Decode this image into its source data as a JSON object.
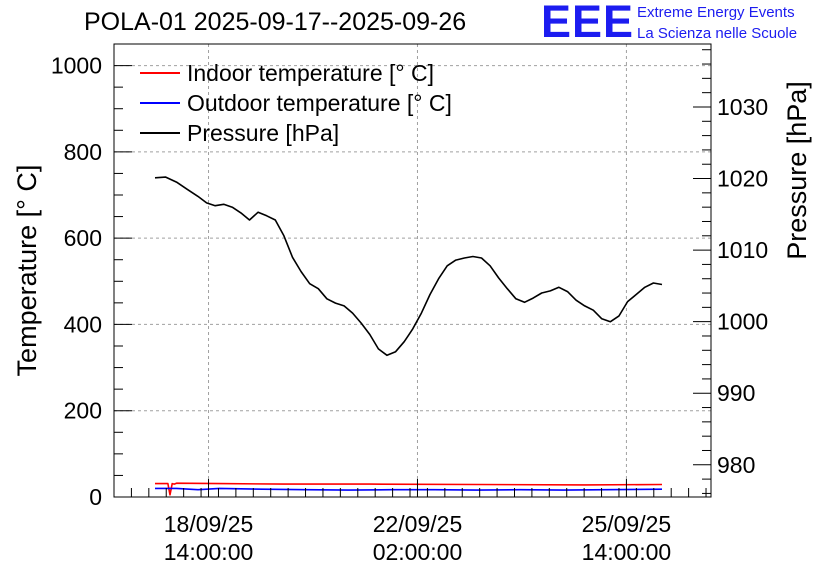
{
  "header": {
    "title": "POLA-01 2025-09-17--2025-09-26",
    "logo_text": "EEE",
    "org_line1": "Extreme Energy Events",
    "org_line2": "La Scienza nelle Scuole"
  },
  "colors": {
    "indoor": "#ff0000",
    "outdoor": "#0000ff",
    "pressure": "#000000",
    "grid": "#a0a0a0",
    "brand": "#1c1cf0"
  },
  "chart_data": {
    "type": "line",
    "title": "POLA-01 2025-09-17--2025-09-26",
    "ylabel": "Temperature [° C]",
    "y2label": "Pressure [hPa]",
    "ylim": [
      0,
      1050
    ],
    "y2lim": [
      975.5,
      1038.8
    ],
    "xlim": [
      0,
      240
    ],
    "yticks": [
      0,
      200,
      400,
      600,
      800,
      1000
    ],
    "y2ticks": [
      980,
      990,
      1000,
      1010,
      1020,
      1030
    ],
    "xticks": [
      {
        "x": 38,
        "line1": "18/09/25",
        "line2": "14:00:00"
      },
      {
        "x": 122,
        "line1": "22/09/25",
        "line2": "02:00:00"
      },
      {
        "x": 206,
        "line1": "25/09/25",
        "line2": "14:00:00"
      }
    ],
    "grid": true,
    "legend_position": "top-left",
    "series": [
      {
        "name": "Indoor temperature [° C]",
        "axis": "left",
        "color": "#ff0000",
        "x": [
          0,
          6,
          7,
          8,
          9,
          10,
          30,
          60,
          100,
          150,
          200,
          236
        ],
        "y": [
          31,
          31,
          5,
          31,
          30,
          32,
          31,
          30,
          30,
          29,
          28,
          29
        ]
      },
      {
        "name": "Outdoor temperature [° C]",
        "axis": "left",
        "color": "#0000ff",
        "x": [
          0,
          10,
          20,
          30,
          50,
          70,
          90,
          110,
          130,
          150,
          170,
          190,
          210,
          236
        ],
        "y": [
          20,
          20,
          17,
          20,
          18,
          17,
          16,
          17,
          17,
          16,
          17,
          16,
          17,
          18
        ]
      },
      {
        "name": "Pressure [hPa]",
        "axis": "right",
        "color": "#000000",
        "x": [
          0,
          5,
          10,
          15,
          20,
          24,
          28,
          32,
          36,
          40,
          44,
          48,
          52,
          56,
          60,
          64,
          68,
          72,
          76,
          80,
          84,
          88,
          92,
          96,
          100,
          104,
          108,
          112,
          116,
          118,
          120,
          124,
          128,
          132,
          136,
          140,
          144,
          148,
          152,
          156,
          160,
          164,
          168,
          172,
          176,
          180,
          184,
          188,
          192,
          196,
          200,
          204,
          208,
          212,
          216,
          220,
          224,
          228,
          232,
          236
        ],
        "y": [
          1020.1,
          1020.2,
          1019.5,
          1018.5,
          1017.5,
          1016.6,
          1016.2,
          1016.4,
          1016.0,
          1015.2,
          1014.2,
          1015.3,
          1014.8,
          1014.2,
          1012.0,
          1009.0,
          1007.0,
          1005.3,
          1004.6,
          1003.2,
          1002.6,
          1002.2,
          1001.2,
          999.8,
          998.2,
          996.2,
          995.3,
          995.8,
          997.2,
          998.1,
          999.0,
          1001.2,
          1003.8,
          1006.0,
          1007.8,
          1008.6,
          1008.9,
          1009.1,
          1008.9,
          1007.8,
          1006.1,
          1004.6,
          1003.2,
          1002.7,
          1003.3,
          1004.0,
          1004.3,
          1004.8,
          1004.2,
          1003.0,
          1002.2,
          1001.6,
          1000.4,
          1000.0,
          1000.8,
          1002.8,
          1003.8,
          1004.8,
          1005.4,
          1005.2
        ]
      }
    ]
  }
}
